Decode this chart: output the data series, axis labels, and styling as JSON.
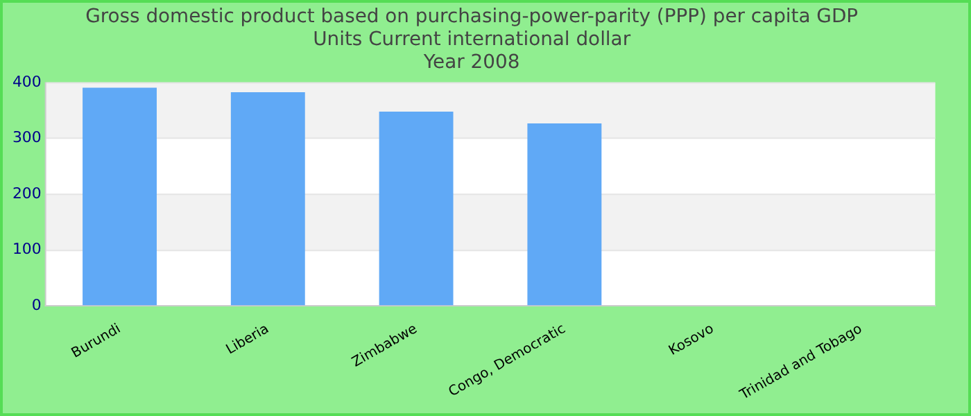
{
  "chart_data": {
    "type": "bar",
    "title": "Gross domestic product based on purchasing-power-parity (PPP) per capita GDP Units Current international dollar",
    "subtitle": "Year 2008",
    "categories": [
      "Burundi",
      "Liberia",
      "Zimbabwe",
      "Congo, Democratic",
      "Kosovo",
      "Trinidad and Tobago"
    ],
    "values": [
      391,
      383,
      348,
      327,
      null,
      null
    ],
    "color": "#60a9f6",
    "ylim": [
      0,
      400
    ],
    "yticks": [
      0,
      100,
      200,
      300,
      400
    ],
    "grid": "y",
    "legend": false
  }
}
